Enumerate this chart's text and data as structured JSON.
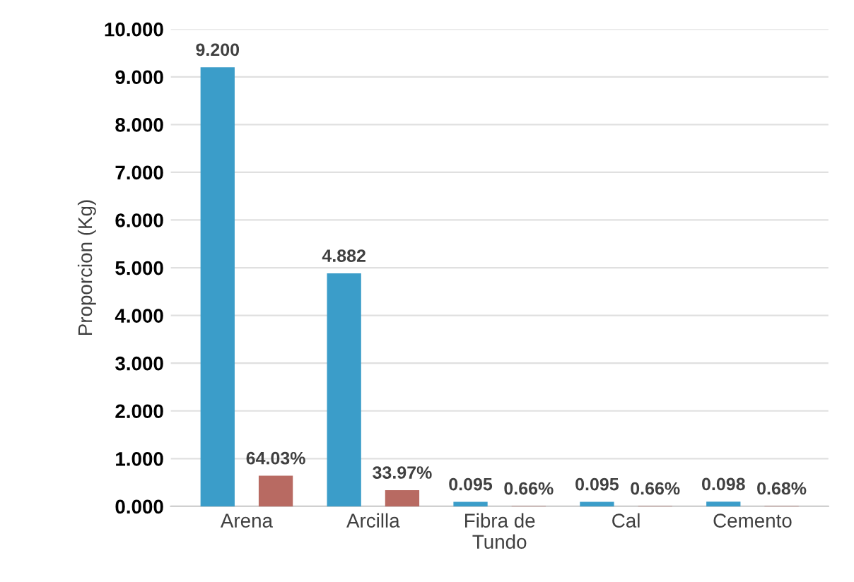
{
  "chart_data": {
    "type": "bar",
    "ylabel": "Proporcion (Kg)",
    "categories": [
      "Arena",
      "Arcilla",
      "Fibra de\nTundo",
      "Cal",
      "Cemento"
    ],
    "series": [
      {
        "color": "#3b9dc9",
        "values": [
          9.2,
          4.882,
          0.095,
          0.095,
          0.098
        ],
        "value_labels": [
          "9.200",
          "4.882",
          "0.095",
          "0.095",
          "0.098"
        ]
      },
      {
        "color": "#b86a62",
        "values": [
          0.6403,
          0.3397,
          0.0066,
          0.0066,
          0.0068
        ],
        "value_labels": [
          "64.03%",
          "33.97%",
          "0.66%",
          "0.66%",
          "0.68%"
        ]
      }
    ],
    "ylim": [
      0,
      10
    ],
    "yticks": [
      {
        "value": 0,
        "label": "0.000"
      },
      {
        "value": 1,
        "label": "1.000"
      },
      {
        "value": 2,
        "label": "2.000"
      },
      {
        "value": 3,
        "label": "3.000"
      },
      {
        "value": 4,
        "label": "4.000"
      },
      {
        "value": 5,
        "label": "5.000"
      },
      {
        "value": 6,
        "label": "6.000"
      },
      {
        "value": 7,
        "label": "7.000"
      },
      {
        "value": 8,
        "label": "8.000"
      },
      {
        "value": 9,
        "label": "9.000"
      },
      {
        "value": 10,
        "label": "10.000"
      }
    ],
    "grid": "y",
    "legend": false
  }
}
